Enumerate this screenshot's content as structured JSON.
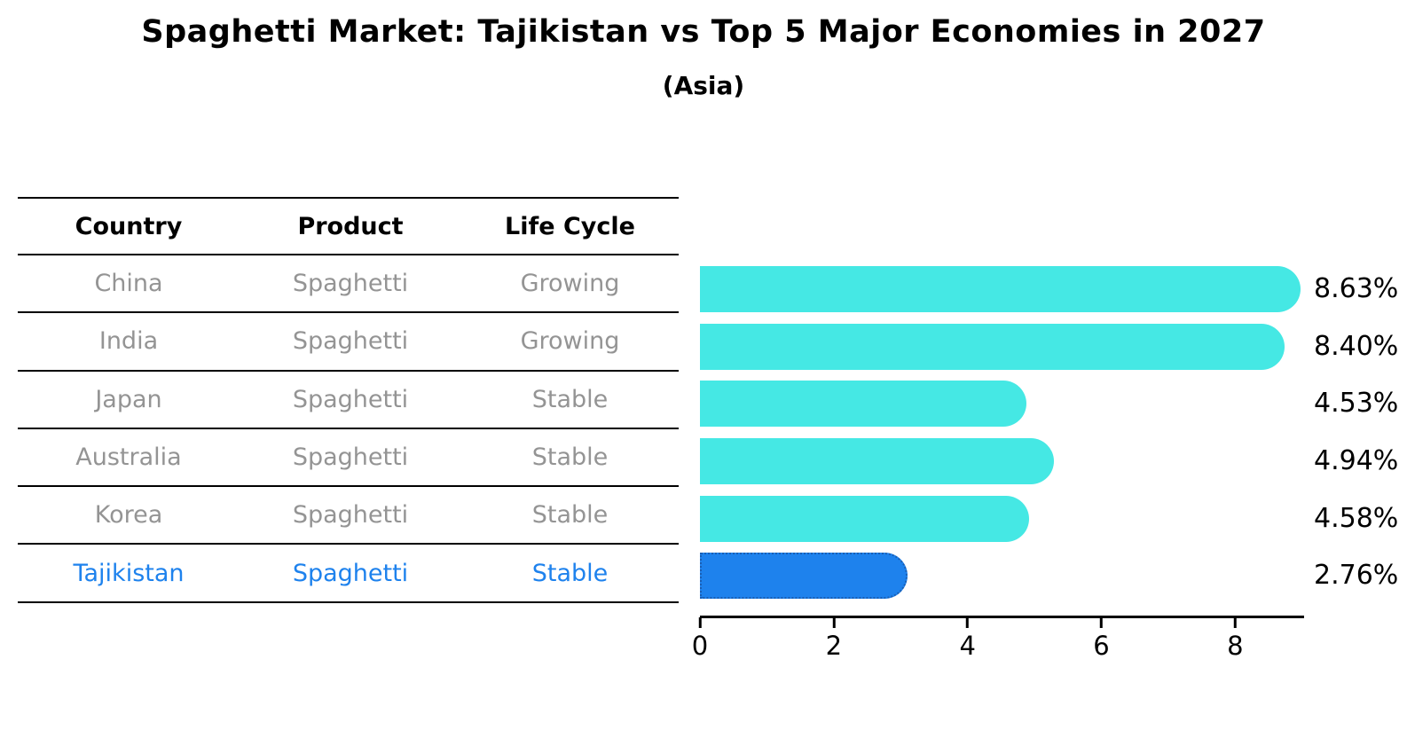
{
  "header": {
    "title": "Spaghetti Market: Tajikistan vs Top 5 Major Economies in 2027",
    "subtitle": "(Asia)"
  },
  "table": {
    "columns": [
      "Country",
      "Product",
      "Life Cycle"
    ],
    "rows": [
      {
        "country": "China",
        "product": "Spaghetti",
        "life_cycle": "Growing",
        "highlight": false
      },
      {
        "country": "India",
        "product": "Spaghetti",
        "life_cycle": "Growing",
        "highlight": false
      },
      {
        "country": "Japan",
        "product": "Spaghetti",
        "life_cycle": "Stable",
        "highlight": false
      },
      {
        "country": "Australia",
        "product": "Spaghetti",
        "life_cycle": "Stable",
        "highlight": false
      },
      {
        "country": "Korea",
        "product": "Spaghetti",
        "life_cycle": "Stable",
        "highlight": false
      },
      {
        "country": "Tajikistan",
        "product": "Spaghetti",
        "life_cycle": "Stable",
        "highlight": true
      }
    ]
  },
  "chart_data": {
    "type": "bar",
    "orientation": "horizontal",
    "title": "Spaghetti Market: Tajikistan vs Top 5 Major Economies in 2027",
    "subtitle": "(Asia)",
    "categories": [
      "China",
      "India",
      "Japan",
      "Australia",
      "Korea",
      "Tajikistan"
    ],
    "values": [
      8.63,
      8.4,
      4.53,
      4.94,
      4.58,
      2.76
    ],
    "value_labels": [
      "8.63%",
      "8.40%",
      "4.53%",
      "4.94%",
      "4.58%",
      "2.76%"
    ],
    "x_ticks": [
      0,
      2,
      4,
      6,
      8
    ],
    "xlim": [
      0,
      9.03
    ],
    "xlabel": "",
    "ylabel": "",
    "grid": false,
    "legend": false,
    "highlight_index": 5,
    "colors": {
      "bar": "#45E8E4",
      "highlight_bar": "#1E82ED",
      "highlight_border": "#1A5FB4",
      "highlight_text": "#1E82ED",
      "muted_text": "#949494"
    }
  }
}
